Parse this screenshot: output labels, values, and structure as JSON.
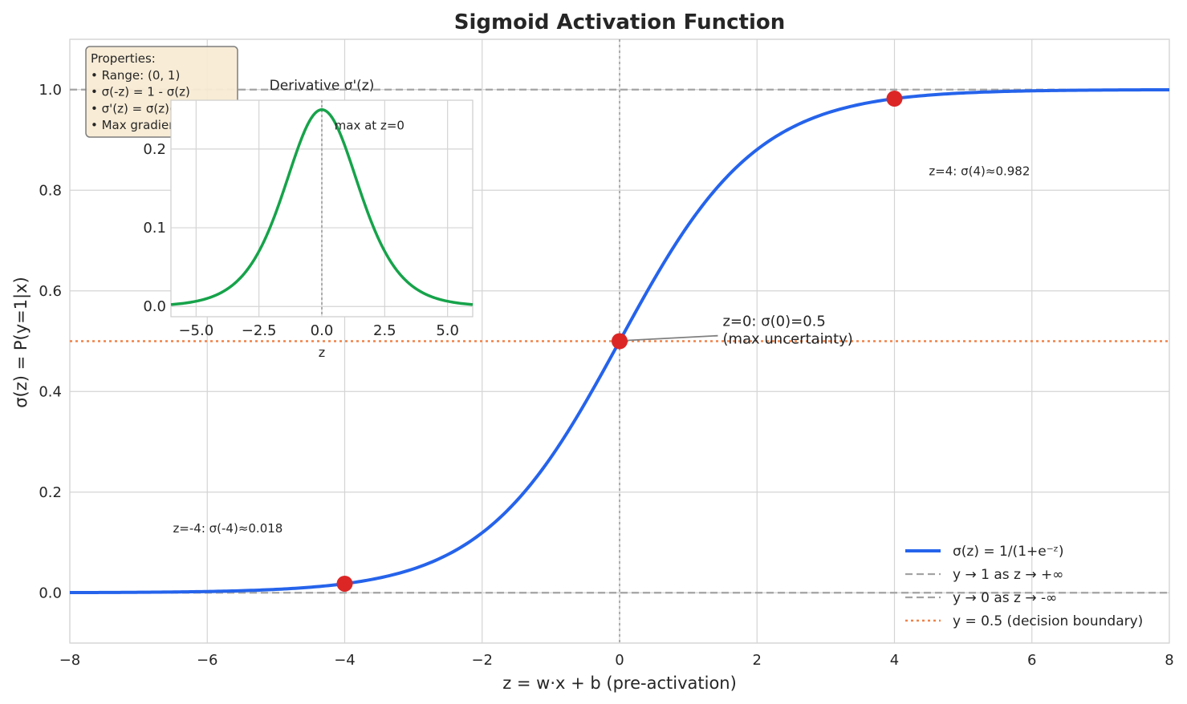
{
  "chart_data": {
    "type": "line",
    "title": "Sigmoid Activation Function",
    "xlabel": "z = w·x + b (pre-activation)",
    "ylabel": "σ(z) = P(y=1|x)",
    "xlim": [
      -8,
      8
    ],
    "ylim": [
      -0.1,
      1.1
    ],
    "xticks": [
      -8,
      -6,
      -4,
      -2,
      0,
      2,
      4,
      6,
      8
    ],
    "xtick_labels": [
      "−8",
      "−6",
      "−4",
      "−2",
      "0",
      "2",
      "4",
      "6",
      "8"
    ],
    "yticks": [
      0.0,
      0.2,
      0.4,
      0.6,
      0.8,
      1.0
    ],
    "ytick_labels": [
      "0.0",
      "0.2",
      "0.4",
      "0.6",
      "0.8",
      "1.0"
    ],
    "grid": true,
    "series": [
      {
        "name": "σ(z) = 1/(1+e⁻ᶻ)",
        "function": "sigmoid",
        "color": "#2563eb",
        "style": "solid"
      },
      {
        "name": "y → 1 as z → +∞",
        "y": 1.0,
        "color": "#a3a3a3",
        "style": "dashed"
      },
      {
        "name": "y → 0 as z → -∞",
        "y": 0.0,
        "color": "#a3a3a3",
        "style": "dashed"
      },
      {
        "name": "y = 0.5 (decision boundary)",
        "y": 0.5,
        "color": "#f0834a",
        "style": "dotted"
      }
    ],
    "vline": {
      "x": 0,
      "color": "#a3a3a3",
      "style": "dotted"
    },
    "points": [
      {
        "x": -4,
        "y": 0.018,
        "color": "#dc2626"
      },
      {
        "x": 0,
        "y": 0.5,
        "color": "#dc2626"
      },
      {
        "x": 4,
        "y": 0.982,
        "color": "#dc2626"
      }
    ],
    "annotations": [
      {
        "text": "z=-4: σ(-4)≈0.018",
        "x": -6.5,
        "y": 0.12
      },
      {
        "text": "z=4: σ(4)≈0.982",
        "x": 4.5,
        "y": 0.83
      },
      {
        "lines": [
          "z=0: σ(0)=0.5",
          "(max uncertainty)"
        ],
        "x": 1.5,
        "y": 0.53,
        "arrow_to": {
          "x": 0,
          "y": 0.5
        }
      }
    ],
    "legend": {
      "position": "lower-right"
    },
    "properties_box": {
      "lines": [
        "Properties:",
        "• Range: (0, 1)",
        "• σ(-z) = 1 - σ(z)",
        "• σ'(z) = σ(z)(1-σ(z))",
        "• Max gradient: 0.25 at z=0"
      ]
    },
    "inset": {
      "title": "Derivative σ'(z)",
      "xlabel": "z",
      "xlim": [
        -6,
        6
      ],
      "ylim": [
        -0.013,
        0.262
      ],
      "xticks": [
        -5,
        -2.5,
        0,
        2.5,
        5
      ],
      "xtick_labels": [
        "−5.0",
        "−2.5",
        "0.0",
        "2.5",
        "5.0"
      ],
      "yticks": [
        0.0,
        0.1,
        0.2
      ],
      "ytick_labels": [
        "0.0",
        "0.1",
        "0.2"
      ],
      "function": "sigmoid_derivative",
      "color": "#16a34a",
      "annotation": {
        "text": "max at z=0",
        "x": 0.5,
        "y": 0.225
      }
    }
  }
}
